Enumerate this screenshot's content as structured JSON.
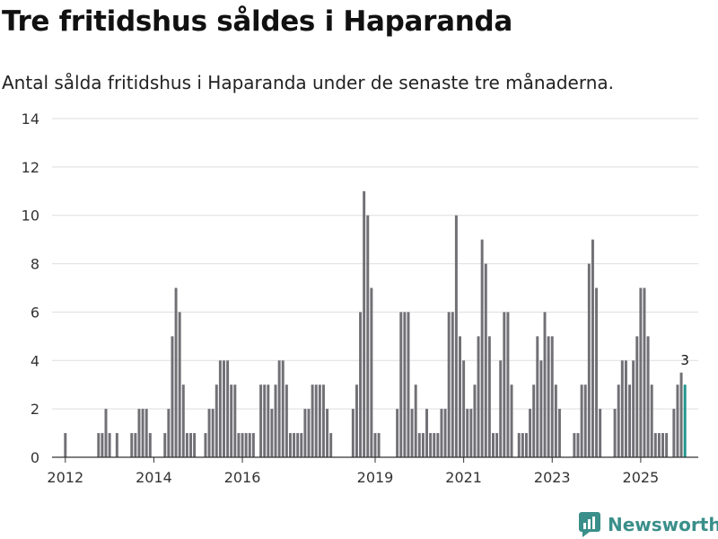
{
  "title": "Tre fritidshus såldes i Haparanda",
  "subtitle": "Antal sålda fritidshus i Haparanda under de senaste tre månaderna.",
  "brand": {
    "name": "Newsworthy",
    "color": "#3a8f8a"
  },
  "chart_data": {
    "type": "bar",
    "x_start": 2012.0,
    "x_step": 0.08333,
    "xlim": [
      2011.7,
      2026.3
    ],
    "ylim": [
      0,
      14
    ],
    "yticks": [
      0,
      2,
      4,
      6,
      8,
      10,
      12,
      14
    ],
    "xticks": [
      2012,
      2014,
      2016,
      2019,
      2021,
      2023,
      2025
    ],
    "bar_color": "#717075",
    "highlight_color": "#20958e",
    "highlight_label": "3",
    "values": [
      1,
      0,
      0,
      0,
      0,
      0,
      0,
      0,
      0,
      1,
      1,
      2,
      1,
      0,
      1,
      0,
      0,
      0,
      1,
      1,
      2,
      2,
      2,
      1,
      0,
      0,
      0,
      1,
      2,
      5,
      7,
      6,
      3,
      1,
      1,
      1,
      0,
      0,
      1,
      2,
      2,
      3,
      4,
      4,
      4,
      3,
      3,
      1,
      1,
      1,
      1,
      1,
      0,
      3,
      3,
      3,
      2,
      3,
      4,
      4,
      3,
      1,
      1,
      1,
      1,
      2,
      2,
      3,
      3,
      3,
      3,
      2,
      1,
      0,
      0,
      0,
      0,
      0,
      2,
      3,
      6,
      11,
      10,
      7,
      1,
      1,
      0,
      0,
      0,
      0,
      2,
      6,
      6,
      6,
      2,
      3,
      1,
      1,
      2,
      1,
      1,
      1,
      2,
      2,
      6,
      6,
      10,
      5,
      4,
      2,
      2,
      3,
      5,
      9,
      8,
      5,
      1,
      1,
      4,
      6,
      6,
      3,
      0,
      1,
      1,
      1,
      2,
      3,
      5,
      4,
      6,
      5,
      5,
      3,
      2,
      0,
      0,
      0,
      1,
      1,
      3,
      3,
      8,
      9,
      7,
      2,
      0,
      0,
      0,
      2,
      3,
      4,
      4,
      3,
      4,
      5,
      7,
      7,
      5,
      3,
      1,
      1,
      1,
      1,
      0,
      2,
      3,
      3.5,
      3
    ]
  }
}
